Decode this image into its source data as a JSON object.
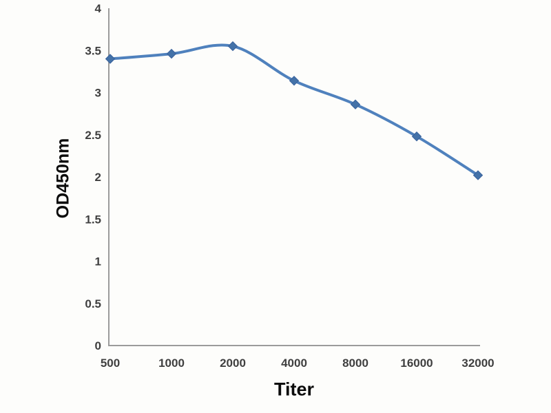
{
  "chart_data": {
    "type": "line",
    "title": "",
    "xlabel": "Titer",
    "ylabel": "OD450nm",
    "categories": [
      "500",
      "1000",
      "2000",
      "4000",
      "8000",
      "16000",
      "32000"
    ],
    "series": [
      {
        "name": "OD450nm",
        "values": [
          3.4,
          3.46,
          3.55,
          3.14,
          2.86,
          2.48,
          2.02
        ]
      }
    ],
    "ylim": [
      0,
      4
    ],
    "yticks": [
      "0",
      "0.5",
      "1",
      "1.5",
      "2",
      "2.5",
      "3",
      "3.5",
      "4"
    ],
    "grid": false,
    "legend": "none",
    "smooth": true,
    "marker": "diamond",
    "colors": {
      "line": "#4f81bd",
      "marker_fill": "#4472a8",
      "marker_border": "#38619c",
      "axis": "#9b9b9b",
      "tick_label": "#3f3f3f",
      "axis_title": "#0c0c0c",
      "background": "#fdfdfb"
    }
  }
}
